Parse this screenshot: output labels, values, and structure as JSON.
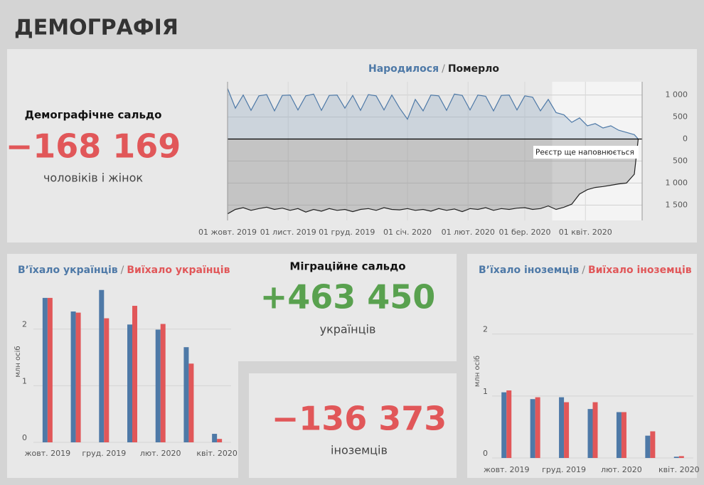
{
  "header": {
    "title": "ДЕМОГРАФІЯ"
  },
  "kpis": [
    {
      "label": "Демографічне сальдо",
      "value": "−168 169",
      "unit": "чоловіків і жінок"
    },
    {
      "label": "Міграційне сальдо",
      "value": "+463 450",
      "unit": "українців"
    },
    {
      "value": "−136 373",
      "unit": "іноземців"
    }
  ],
  "chart_data": [
    {
      "type": "area",
      "title_separator": "/",
      "x": [
        "2019-10-01",
        "2019-10-05",
        "2019-10-09",
        "2019-10-13",
        "2019-10-17",
        "2019-10-21",
        "2019-10-25",
        "2019-10-29",
        "2019-11-02",
        "2019-11-06",
        "2019-11-10",
        "2019-11-14",
        "2019-11-18",
        "2019-11-22",
        "2019-11-26",
        "2019-11-30",
        "2019-12-04",
        "2019-12-08",
        "2019-12-12",
        "2019-12-16",
        "2019-12-20",
        "2019-12-24",
        "2019-12-28",
        "2020-01-01",
        "2020-01-05",
        "2020-01-09",
        "2020-01-13",
        "2020-01-17",
        "2020-01-21",
        "2020-01-25",
        "2020-01-29",
        "2020-02-02",
        "2020-02-06",
        "2020-02-10",
        "2020-02-14",
        "2020-02-18",
        "2020-02-22",
        "2020-02-26",
        "2020-03-01",
        "2020-03-05",
        "2020-03-09",
        "2020-03-13",
        "2020-03-17",
        "2020-03-21",
        "2020-03-25",
        "2020-03-29",
        "2020-04-02",
        "2020-04-06",
        "2020-04-10",
        "2020-04-14",
        "2020-04-18",
        "2020-04-22",
        "2020-04-26",
        "2020-04-28"
      ],
      "series": [
        {
          "name": "Народилося",
          "color": "#4e79a7",
          "values": [
            1150,
            700,
            1000,
            650,
            980,
            1010,
            640,
            990,
            1000,
            660,
            980,
            1020,
            650,
            990,
            1000,
            700,
            990,
            650,
            1010,
            980,
            660,
            1000,
            700,
            450,
            900,
            640,
            1000,
            980,
            650,
            1020,
            990,
            660,
            1000,
            970,
            640,
            990,
            1000,
            660,
            980,
            950,
            640,
            900,
            600,
            550,
            380,
            480,
            300,
            350,
            250,
            300,
            200,
            150,
            100,
            0
          ]
        },
        {
          "name": "Померло",
          "color": "#222222",
          "values": [
            -1700,
            -1600,
            -1560,
            -1620,
            -1580,
            -1550,
            -1600,
            -1570,
            -1620,
            -1580,
            -1660,
            -1600,
            -1640,
            -1580,
            -1620,
            -1600,
            -1650,
            -1600,
            -1580,
            -1620,
            -1560,
            -1600,
            -1610,
            -1580,
            -1620,
            -1600,
            -1640,
            -1580,
            -1620,
            -1590,
            -1650,
            -1580,
            -1600,
            -1560,
            -1620,
            -1580,
            -1600,
            -1570,
            -1560,
            -1600,
            -1580,
            -1520,
            -1600,
            -1550,
            -1480,
            -1250,
            -1150,
            -1100,
            -1080,
            -1050,
            -1020,
            -1000,
            -800,
            0
          ]
        }
      ],
      "xlim": [
        "2019-10-01",
        "2020-04-30"
      ],
      "xticks": [
        {
          "value": "2019-10-01",
          "label": "01 жовт. 2019"
        },
        {
          "value": "2019-11-01",
          "label": "01 лист. 2019"
        },
        {
          "value": "2019-12-01",
          "label": "01 груд. 2019"
        },
        {
          "value": "2020-01-01",
          "label": "01 січ. 2020"
        },
        {
          "value": "2020-02-01",
          "label": "01 лют. 2020"
        },
        {
          "value": "2020-03-01",
          "label": "01 бер. 2020"
        },
        {
          "value": "2020-04-01",
          "label": "01 квіт. 2020"
        }
      ],
      "ylim": [
        -1850,
        1300
      ],
      "yticks": [
        {
          "value": 1000,
          "label": "1 000"
        },
        500,
        0,
        {
          "value": -500,
          "label": "500"
        },
        {
          "value": -1000,
          "label": "1 000"
        },
        {
          "value": -1500,
          "label": "1 500"
        }
      ],
      "grid": true,
      "highlight_range": [
        "2020-03-15",
        "2020-04-30"
      ],
      "annotation": "Реєстр ще наповнюється"
    },
    {
      "type": "bar",
      "title_separator": "/",
      "categories": [
        "жовт. 2019",
        null,
        "груд. 2019",
        null,
        "лют. 2020",
        null,
        "квіт. 2020"
      ],
      "series": [
        {
          "name": "В’їхало українців",
          "color": "#4e79a7",
          "values": [
            2.55,
            2.31,
            2.69,
            2.08,
            1.99,
            1.68,
            0.15
          ]
        },
        {
          "name": "Виїхало українців",
          "color": "#e15759",
          "values": [
            2.55,
            2.29,
            2.19,
            2.41,
            2.09,
            1.39,
            0.06
          ]
        }
      ],
      "ylabel": "млн осіб",
      "ylim": [
        0,
        2.85
      ],
      "yticks": [
        0,
        1,
        2
      ],
      "grid": true
    },
    {
      "type": "bar",
      "title_separator": "/",
      "categories": [
        "жовт. 2019",
        null,
        "груд. 2019",
        null,
        "лют. 2020",
        null,
        "квіт. 2020"
      ],
      "series": [
        {
          "name": "В’їхало іноземців",
          "color": "#4e79a7",
          "values": [
            1.06,
            0.95,
            0.98,
            0.79,
            0.74,
            0.36,
            0.02
          ]
        },
        {
          "name": "Виїхало іноземців",
          "color": "#e15759",
          "values": [
            1.09,
            0.98,
            0.9,
            0.9,
            0.74,
            0.43,
            0.03
          ]
        }
      ],
      "ylabel": "млн осіб",
      "ylim": [
        0,
        2.8
      ],
      "yticks": [
        0,
        1,
        2
      ],
      "grid": true
    }
  ]
}
